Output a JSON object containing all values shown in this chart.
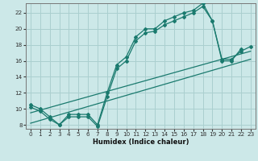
{
  "title": "",
  "xlabel": "Humidex (Indice chaleur)",
  "ylabel": "",
  "background_color": "#cce8e8",
  "grid_color": "#aacfcf",
  "line_color": "#1a7a6e",
  "xlim": [
    -0.5,
    23.5
  ],
  "ylim": [
    7.5,
    23.2
  ],
  "xticks": [
    0,
    1,
    2,
    3,
    4,
    5,
    6,
    7,
    8,
    9,
    10,
    11,
    12,
    13,
    14,
    15,
    16,
    17,
    18,
    19,
    20,
    21,
    22,
    23
  ],
  "yticks": [
    8,
    10,
    12,
    14,
    16,
    18,
    20,
    22
  ],
  "curve1_x": [
    0,
    1,
    2,
    3,
    4,
    5,
    6,
    7,
    8,
    9,
    10,
    11,
    12,
    13,
    14,
    15,
    16,
    17,
    18,
    19,
    20,
    21,
    22
  ],
  "curve1_y": [
    10.5,
    10.0,
    9.0,
    8.0,
    9.3,
    9.3,
    9.3,
    8.0,
    12.0,
    15.5,
    16.5,
    19.0,
    20.0,
    20.0,
    21.0,
    21.5,
    22.0,
    22.3,
    23.2,
    21.0,
    16.0,
    16.0,
    17.5
  ],
  "curve2_x": [
    0,
    1,
    2,
    3,
    4,
    5,
    6,
    7,
    8,
    9,
    10,
    11,
    12,
    13,
    14,
    15,
    16,
    17,
    18,
    19,
    20,
    21,
    22,
    23
  ],
  "curve2_y": [
    10.2,
    9.7,
    8.7,
    8.0,
    9.0,
    9.0,
    9.0,
    7.8,
    11.5,
    15.0,
    16.0,
    18.5,
    19.5,
    19.7,
    20.5,
    21.0,
    21.5,
    22.0,
    22.8,
    21.0,
    16.2,
    16.2,
    17.2,
    17.8
  ],
  "trend1_x": [
    0,
    23
  ],
  "trend1_y": [
    9.5,
    17.2
  ],
  "trend2_x": [
    0,
    23
  ],
  "trend2_y": [
    8.2,
    16.2
  ]
}
